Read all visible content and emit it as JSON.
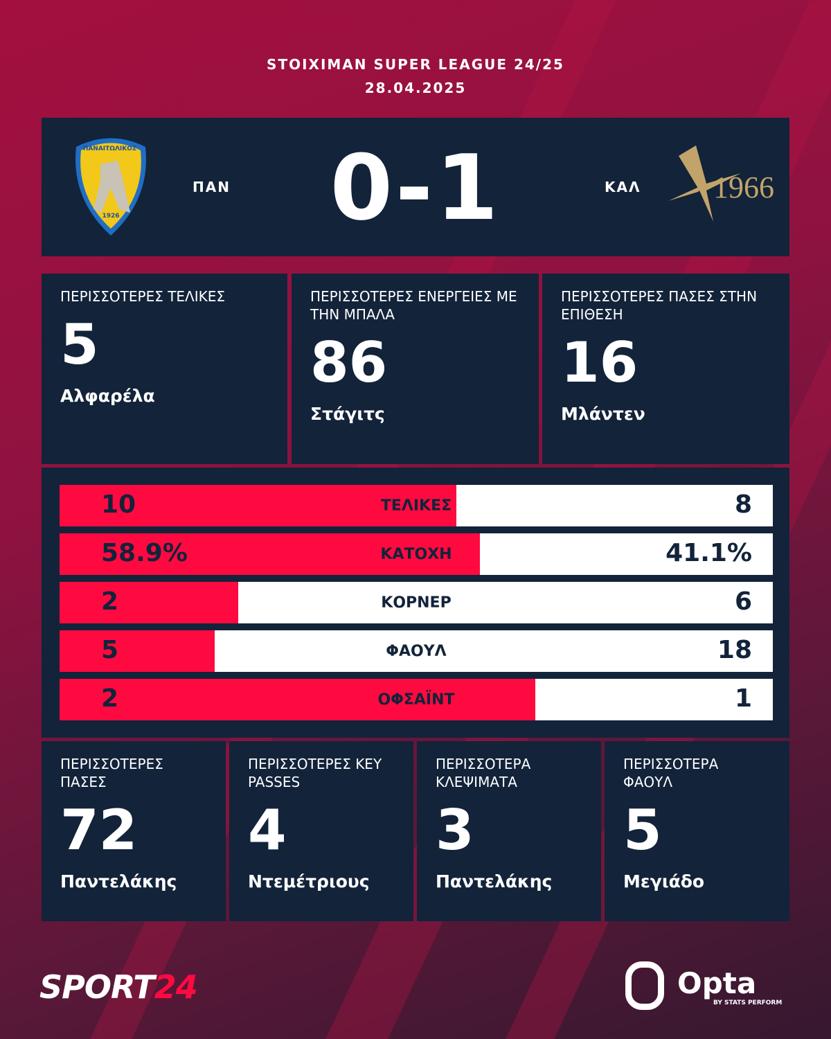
{
  "header": {
    "competition": "STOIXIMAN SUPER LEAGUE 24/25",
    "date": "28.04.2025"
  },
  "match": {
    "home": "ΠΑΝ",
    "away": "ΚΑΛ",
    "score": "0-1",
    "home_logo_text": "ΠΑΝΑΙΤΩΛΙΚΟΣ 1926",
    "away_logo_text": "1966"
  },
  "top_cards": [
    {
      "title": "ΠΕΡΙΣΣΟΤΕΡΕΣ ΤΕΛΙΚΕΣ",
      "value": "5",
      "player": "Αλφαρέλα"
    },
    {
      "title": "ΠΕΡΙΣΣΟΤΕΡΕΣ ΕΝΕΡΓΕΙΕΣ ΜΕ ΤΗΝ ΜΠΑΛΑ",
      "value": "86",
      "player": "Στάγιτς"
    },
    {
      "title": "ΠΕΡΙΣΣΟΤΕΡΕΣ ΠΑΣΕΣ ΣΤΗΝ ΕΠΙΘΕΣΗ",
      "value": "16",
      "player": "Μλάντεν"
    }
  ],
  "stats": [
    {
      "label": "ΤΕΛΙΚΕΣ",
      "home": "10",
      "away": "8",
      "home_share": 0.556
    },
    {
      "label": "ΚΑΤΟΧΗ",
      "home": "58.9%",
      "away": "41.1%",
      "home_share": 0.589
    },
    {
      "label": "ΚΟΡΝΕΡ",
      "home": "2",
      "away": "6",
      "home_share": 0.25
    },
    {
      "label": "ΦΑΟΥΛ",
      "home": "5",
      "away": "18",
      "home_share": 0.217
    },
    {
      "label": "ΟΦΣΑΪΝΤ",
      "home": "2",
      "away": "1",
      "home_share": 0.667
    }
  ],
  "bottom_cards": [
    {
      "title": "ΠΕΡΙΣΣΟΤΕΡΕΣ ΠΑΣΕΣ",
      "value": "72",
      "player": "Παντελάκης"
    },
    {
      "title": "ΠΕΡΙΣΣΟΤΕΡΕΣ KEY PASSES",
      "value": "4",
      "player": "Ντεμέτριους"
    },
    {
      "title": "ΠΕΡΙΣΣΟΤΕΡΑ ΚΛΕΨΙΜΑΤΑ",
      "value": "3",
      "player": "Παντελάκης"
    },
    {
      "title": "ΠΕΡΙΣΣΟΤΕΡΑ ΦΑΟΥΛ",
      "value": "5",
      "player": "Μεγιάδο"
    }
  ],
  "footer": {
    "brand_a": "SPORT",
    "brand_b": "24",
    "opta": "Opta",
    "opta_sub": "BY STATS PERFORM"
  },
  "colors": {
    "accent": "#ff0a40",
    "panel": "#12233a"
  }
}
